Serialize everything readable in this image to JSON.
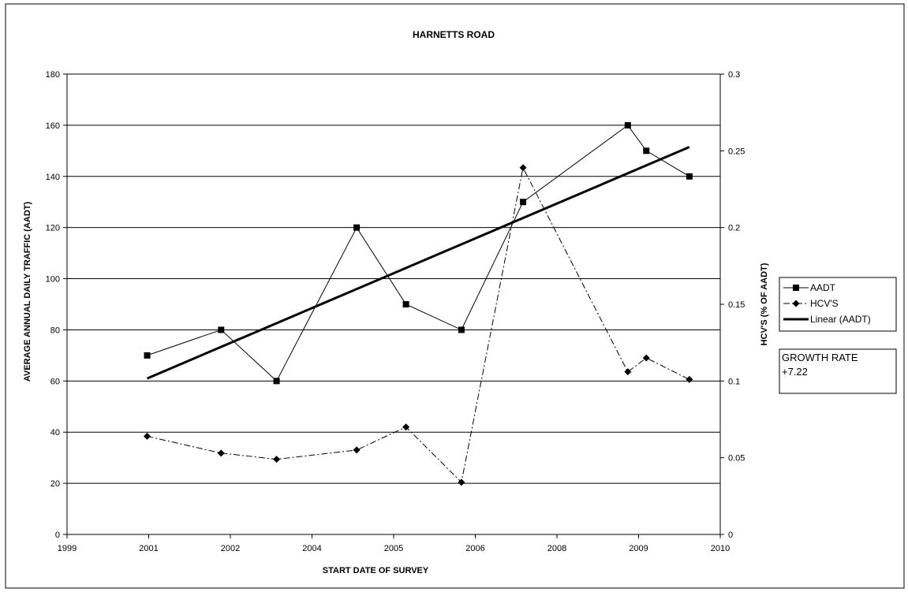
{
  "chart_data": {
    "type": "line",
    "title": "HARNETTS ROAD",
    "xlabel": "START DATE OF SURVEY",
    "ylabel": "AVERAGE ANNUAL DAILY TRAFFIC (AADT)",
    "y2label": "HCV'S (% OF AADT)",
    "x_tick_labels": [
      "1999",
      "2001",
      "2002",
      "2004",
      "2005",
      "2006",
      "2008",
      "2009",
      "2010"
    ],
    "xlim": [
      1999.6,
      2010.2
    ],
    "ylim": [
      0,
      180
    ],
    "y_ticks": [
      0,
      20,
      40,
      60,
      80,
      100,
      120,
      140,
      160,
      180
    ],
    "y2lim": [
      0,
      0.3
    ],
    "y2_ticks": [
      "0",
      "0.05",
      "0.1",
      "0.15",
      "0.2",
      "0.25",
      "0.3"
    ],
    "grid": "horizontal",
    "legend_position": "right",
    "series": [
      {
        "name": "AADT",
        "axis": "left",
        "marker": "square",
        "line": "solid",
        "points": [
          {
            "x": 2000.9,
            "y": 70
          },
          {
            "x": 2002.1,
            "y": 80
          },
          {
            "x": 2003.0,
            "y": 60
          },
          {
            "x": 2004.3,
            "y": 120
          },
          {
            "x": 2005.1,
            "y": 90
          },
          {
            "x": 2006.0,
            "y": 80
          },
          {
            "x": 2007.0,
            "y": 130
          },
          {
            "x": 2008.7,
            "y": 160
          },
          {
            "x": 2009.0,
            "y": 150
          },
          {
            "x": 2009.7,
            "y": 140
          }
        ]
      },
      {
        "name": "HCV'S",
        "axis": "right",
        "marker": "diamond",
        "line": "dash-dot",
        "points": [
          {
            "x": 2000.9,
            "y": 0.064
          },
          {
            "x": 2002.1,
            "y": 0.053
          },
          {
            "x": 2003.0,
            "y": 0.049
          },
          {
            "x": 2004.3,
            "y": 0.055
          },
          {
            "x": 2005.1,
            "y": 0.07
          },
          {
            "x": 2006.0,
            "y": 0.034
          },
          {
            "x": 2007.0,
            "y": 0.239
          },
          {
            "x": 2008.7,
            "y": 0.106
          },
          {
            "x": 2009.0,
            "y": 0.115
          },
          {
            "x": 2009.7,
            "y": 0.101
          }
        ]
      },
      {
        "name": "Linear (AADT)",
        "axis": "left",
        "marker": "none",
        "line": "thick-solid",
        "points": [
          {
            "x": 2000.9,
            "y": 61
          },
          {
            "x": 2009.7,
            "y": 151.5
          }
        ]
      }
    ],
    "annotation": {
      "line1": "GROWTH RATE",
      "line2": "+7.22"
    }
  }
}
